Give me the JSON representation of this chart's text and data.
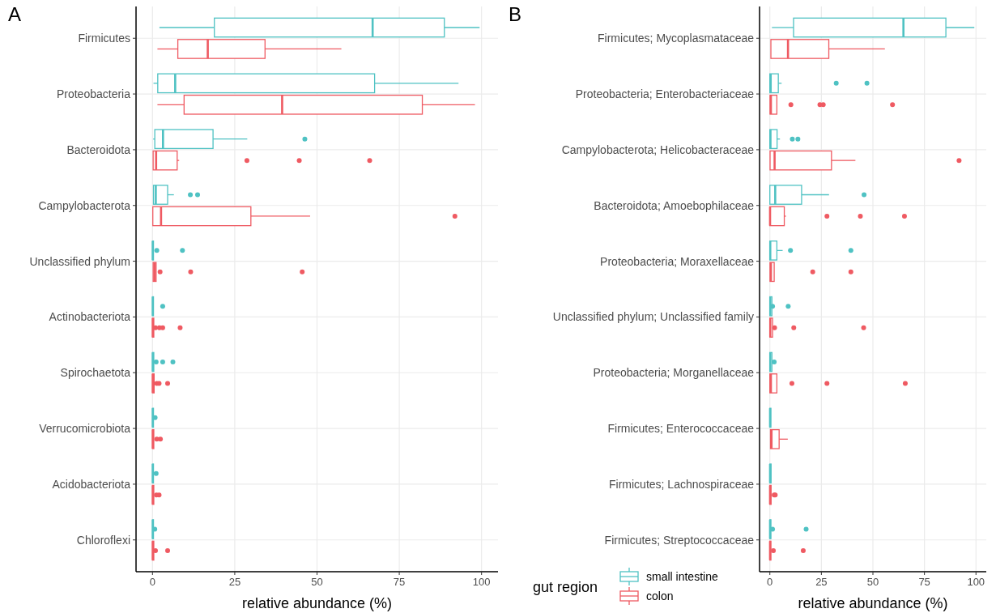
{
  "chart_data": [
    {
      "type": "box",
      "title": "A",
      "xlabel": "relative abundance (%)",
      "orientation": "horizontal",
      "xlim": [
        -5,
        105
      ],
      "xticks": [
        0,
        25,
        50,
        75,
        100
      ],
      "grid": true,
      "legend": false,
      "marker": "circle",
      "categories": [
        "Firmicutes",
        "Proteobacteria",
        "Bacteroidota",
        "Campylobacterota",
        "Unclassified phylum",
        "Actinobacteriota",
        "Spirochaetota",
        "Verrucomicrobiota",
        "Acidobacteriota",
        "Chloroflexi"
      ],
      "series": [
        {
          "color": "#4fc2c3",
          "boxes": [
            {
              "low": 2.1,
              "q1": 18.8,
              "median": 66.9,
              "q3": 88.7,
              "high": 99.4
            },
            {
              "low": 0.3,
              "q1": 1.6,
              "median": 6.9,
              "q3": 67.5,
              "high": 93
            },
            {
              "low": 0.2,
              "q1": 0.7,
              "median": 3.2,
              "q3": 18.4,
              "high": 28.8,
              "outliers": [
                46.3
              ]
            },
            {
              "low": 0.2,
              "q1": 0.3,
              "median": 1,
              "q3": 4.6,
              "high": 6.5,
              "outliers": [
                11.5,
                13.7
              ]
            },
            {
              "low": 0,
              "q1": 0,
              "median": 0.1,
              "q3": 0.3,
              "high": 0.5,
              "outliers": [
                1.3,
                9.1
              ]
            },
            {
              "low": 0,
              "q1": 0,
              "median": 0.1,
              "q3": 0.3,
              "high": 0.4,
              "outliers": [
                3.1
              ]
            },
            {
              "low": 0,
              "q1": 0,
              "median": 0.1,
              "q3": 0.4,
              "high": 0.5,
              "outliers": [
                1.1,
                3.1,
                6.2
              ]
            },
            {
              "low": 0,
              "q1": 0,
              "median": 0.1,
              "q3": 0.3,
              "high": 0.4,
              "outliers": [
                0.8
              ]
            },
            {
              "low": 0,
              "q1": 0,
              "median": 0.1,
              "q3": 0.3,
              "high": 0.4,
              "outliers": [
                1.1
              ]
            },
            {
              "low": 0,
              "q1": 0,
              "median": 0.1,
              "q3": 0.3,
              "high": 0.4,
              "outliers": [
                0.7
              ]
            }
          ]
        },
        {
          "color": "#ef5a62",
          "boxes": [
            {
              "low": 1.5,
              "q1": 7.7,
              "median": 16.8,
              "q3": 34.2,
              "high": 57.4
            },
            {
              "low": 1.5,
              "q1": 9.6,
              "median": 39.4,
              "q3": 82,
              "high": 98
            },
            {
              "low": 0.2,
              "q1": 0.2,
              "median": 1.1,
              "q3": 7.5,
              "high": 8.1,
              "outliers": [
                28.7,
                44.6,
                66
              ]
            },
            {
              "low": 0.1,
              "q1": 0.1,
              "median": 2.6,
              "q3": 29.9,
              "high": 47.9,
              "outliers": [
                91.9
              ]
            },
            {
              "low": 0,
              "q1": 0.2,
              "median": 0.6,
              "q3": 1.1,
              "high": 1.2,
              "outliers": [
                2.3,
                11.6,
                45.5
              ]
            },
            {
              "low": 0,
              "q1": 0,
              "median": 0.1,
              "q3": 0.4,
              "high": 0.5,
              "outliers": [
                0.9,
                2.1,
                3.1,
                8.4
              ]
            },
            {
              "low": 0,
              "q1": 0,
              "median": 0.1,
              "q3": 0.5,
              "high": 0.6,
              "outliers": [
                1.3,
                2,
                4.6
              ]
            },
            {
              "low": 0,
              "q1": 0,
              "median": 0.1,
              "q3": 0.4,
              "high": 0.5,
              "outliers": [
                1.3,
                2.4
              ]
            },
            {
              "low": 0,
              "q1": 0,
              "median": 0.1,
              "q3": 0.4,
              "high": 0.5,
              "outliers": [
                1.2,
                2
              ]
            },
            {
              "low": 0,
              "q1": 0,
              "median": 0.1,
              "q3": 0.4,
              "high": 0.5,
              "outliers": [
                0.9,
                4.6
              ]
            }
          ]
        }
      ]
    },
    {
      "type": "box",
      "title": "B",
      "xlabel": "relative abundance (%)",
      "orientation": "horizontal",
      "xlim": [
        -5,
        105
      ],
      "xticks": [
        0,
        25,
        50,
        75,
        100
      ],
      "grid": true,
      "legend": "bottom left",
      "legend_title": "gut region",
      "marker": "circle",
      "categories": [
        "Firmicutes; Mycoplasmataceae",
        "Proteobacteria; Enterobacteriaceae",
        "Campylobacterota; Helicobacteraceae",
        "Bacteroidota; Amoebophilaceae",
        "Proteobacteria; Moraxellaceae",
        "Unclassified phylum; Unclassified family",
        "Proteobacteria; Morganellaceae",
        "Firmicutes; Enterococcaceae",
        "Firmicutes; Lachnospiraceae",
        "Firmicutes; Streptococcaceae"
      ],
      "series": [
        {
          "name": "small intestine",
          "color": "#4fc2c3",
          "boxes": [
            {
              "low": 1,
              "q1": 11.5,
              "median": 64.8,
              "q3": 85.4,
              "high": 99.2
            },
            {
              "low": 0,
              "q1": 0,
              "median": 0.4,
              "q3": 4.1,
              "high": 5.7,
              "outliers": [
                32.2,
                47.1
              ]
            },
            {
              "low": 0,
              "q1": 0,
              "median": 0.3,
              "q3": 3.5,
              "high": 4.9,
              "outliers": [
                10.9,
                13.6
              ]
            },
            {
              "low": 0,
              "q1": 0,
              "median": 2.6,
              "q3": 15.4,
              "high": 28.7,
              "outliers": [
                45.7
              ]
            },
            {
              "low": 0,
              "q1": 0,
              "median": 0.2,
              "q3": 3.4,
              "high": 6.2,
              "outliers": [
                10,
                39.3
              ]
            },
            {
              "low": 0,
              "q1": 0,
              "median": 0.2,
              "q3": 1,
              "high": 1.1,
              "outliers": [
                1.3,
                8.9
              ]
            },
            {
              "low": 0,
              "q1": 0,
              "median": 0.2,
              "q3": 1,
              "high": 1.1,
              "outliers": [
                2.1
              ]
            },
            {
              "low": 0,
              "q1": 0,
              "median": 0.1,
              "q3": 0.5,
              "high": 1
            },
            {
              "low": 0,
              "q1": 0,
              "median": 0.1,
              "q3": 0.6,
              "high": 0.7
            },
            {
              "low": 0,
              "q1": 0,
              "median": 0.1,
              "q3": 0.5,
              "high": 0.6,
              "outliers": [
                1.3,
                17.6
              ]
            }
          ]
        },
        {
          "name": "colon",
          "color": "#ef5a62",
          "boxes": [
            {
              "low": 0.1,
              "q1": 0.5,
              "median": 8.8,
              "q3": 28.6,
              "high": 55.8
            },
            {
              "low": 0,
              "q1": 0.1,
              "median": 0.5,
              "q3": 3.4,
              "high": 3.5,
              "outliers": [
                10.2,
                24.3,
                25.9,
                59.5
              ]
            },
            {
              "low": 0,
              "q1": 0.1,
              "median": 2.3,
              "q3": 29.9,
              "high": 41.5,
              "outliers": [
                91.8
              ]
            },
            {
              "low": 0,
              "q1": 0,
              "median": 0.1,
              "q3": 7,
              "high": 7.8,
              "outliers": [
                27.7,
                43.9,
                65.3
              ]
            },
            {
              "low": 0,
              "q1": 0.1,
              "median": 0.5,
              "q3": 2.1,
              "high": 2.3,
              "outliers": [
                20.8,
                39.3
              ]
            },
            {
              "low": 0,
              "q1": 0,
              "median": 0.2,
              "q3": 1.3,
              "high": 1.4,
              "outliers": [
                2.3,
                11.6,
                45.5
              ]
            },
            {
              "low": 0,
              "q1": 0,
              "median": 0.5,
              "q3": 3.4,
              "high": 3.9,
              "outliers": [
                10.7,
                27.7,
                65.7
              ]
            },
            {
              "low": 0,
              "q1": 0.3,
              "median": 0.8,
              "q3": 4.5,
              "high": 8.7
            },
            {
              "low": 0,
              "q1": 0,
              "median": 0.1,
              "q3": 0.6,
              "high": 0.7,
              "outliers": [
                2.1,
                2.6
              ]
            },
            {
              "low": 0,
              "q1": 0,
              "median": 0.1,
              "q3": 0.5,
              "high": 0.6,
              "outliers": [
                1.7,
                16.2
              ]
            }
          ]
        }
      ]
    }
  ]
}
